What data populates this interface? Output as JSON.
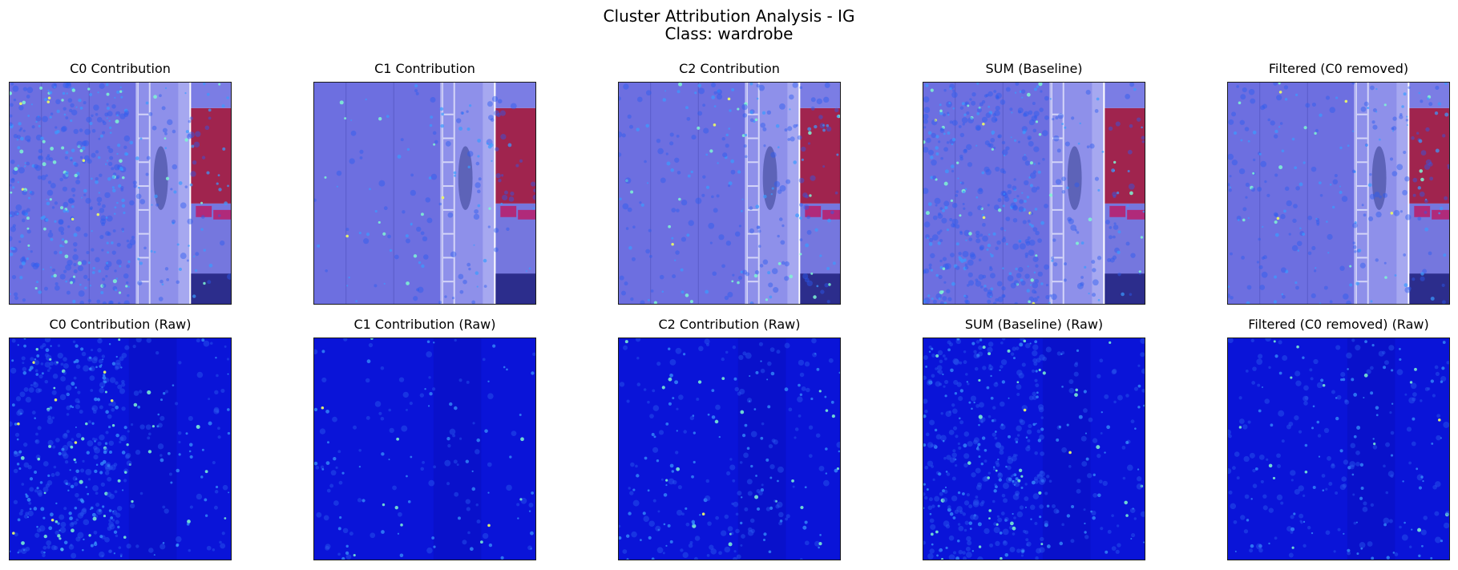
{
  "figure": {
    "title_line1": "Cluster Attribution Analysis - IG",
    "title_line2": "Class: wardrobe"
  },
  "colors": {
    "overlay_base": "#6d6fe0",
    "raw_base": "#0a14d8",
    "wall_overlay": "#a0244e",
    "hot_cyan": "#7ff7d2",
    "hot_yellow": "#e8f56a"
  },
  "panels": [
    {
      "label": "C0 Contribution",
      "kind": "overlay",
      "cluster": "C0",
      "density": "high"
    },
    {
      "label": "C1 Contribution",
      "kind": "overlay",
      "cluster": "C1",
      "density": "low"
    },
    {
      "label": "C2 Contribution",
      "kind": "overlay",
      "cluster": "C2",
      "density": "medium"
    },
    {
      "label": "SUM (Baseline)",
      "kind": "overlay",
      "cluster": "SUM",
      "density": "high"
    },
    {
      "label": "Filtered (C0 removed)",
      "kind": "overlay",
      "cluster": "FILTERED",
      "density": "medium"
    },
    {
      "label": "C0 Contribution (Raw)",
      "kind": "raw",
      "cluster": "C0",
      "density": "high"
    },
    {
      "label": "C1 Contribution (Raw)",
      "kind": "raw",
      "cluster": "C1",
      "density": "low"
    },
    {
      "label": "C2 Contribution (Raw)",
      "kind": "raw",
      "cluster": "C2",
      "density": "medium"
    },
    {
      "label": "SUM (Baseline) (Raw)",
      "kind": "raw",
      "cluster": "SUM",
      "density": "high"
    },
    {
      "label": "Filtered (C0 removed) (Raw)",
      "kind": "raw",
      "cluster": "FILTERED",
      "density": "medium"
    }
  ]
}
